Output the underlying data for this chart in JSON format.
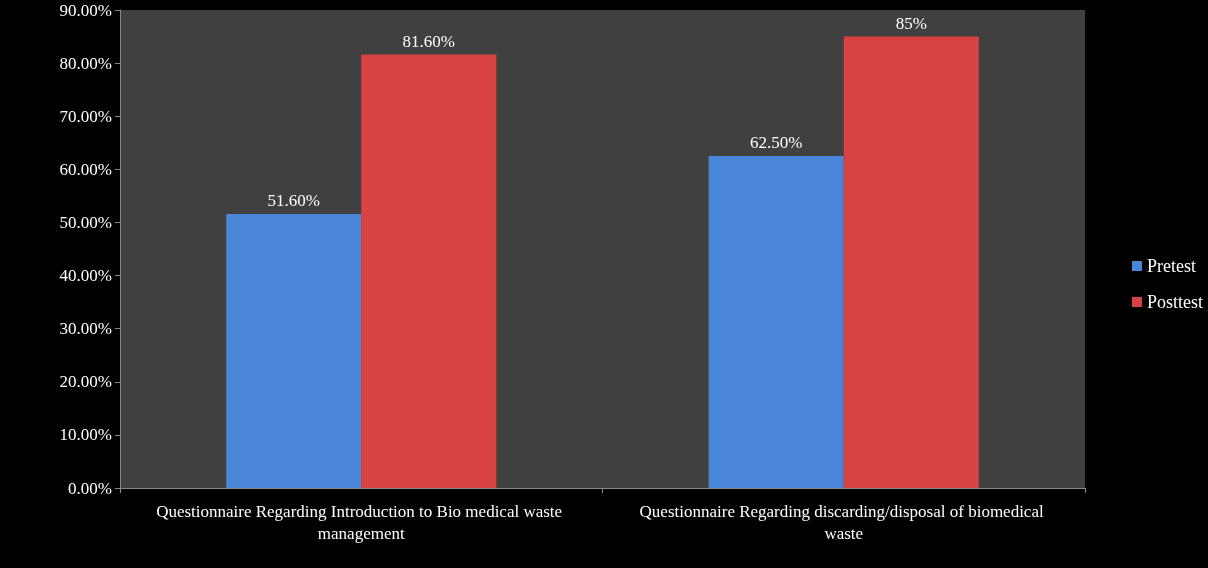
{
  "chart_data": {
    "type": "bar",
    "categories": [
      "Questionnaire Regarding Introduction to Bio medical waste management",
      "Questionnaire Regarding discarding/disposal of biomedical waste"
    ],
    "series": [
      {
        "name": "Pretest",
        "color": "#4a86d8",
        "values": [
          51.6,
          62.5
        ],
        "value_labels": [
          "51.60%",
          "62.50%"
        ]
      },
      {
        "name": "Posttest",
        "color": "#d84242",
        "values": [
          81.6,
          85
        ],
        "value_labels": [
          "81.60%",
          "85%"
        ]
      }
    ],
    "ylim": [
      0,
      90
    ],
    "yticks": [
      {
        "value": 0,
        "label": "0.00%"
      },
      {
        "value": 10,
        "label": "10.00%"
      },
      {
        "value": 20,
        "label": "20.00%"
      },
      {
        "value": 30,
        "label": "30.00%"
      },
      {
        "value": 40,
        "label": "40.00%"
      },
      {
        "value": 50,
        "label": "50.00%"
      },
      {
        "value": 60,
        "label": "60.00%"
      },
      {
        "value": 70,
        "label": "70.00%"
      },
      {
        "value": 80,
        "label": "80.00%"
      },
      {
        "value": 90,
        "label": "90.00%"
      }
    ],
    "grid": false,
    "legend": "right"
  }
}
